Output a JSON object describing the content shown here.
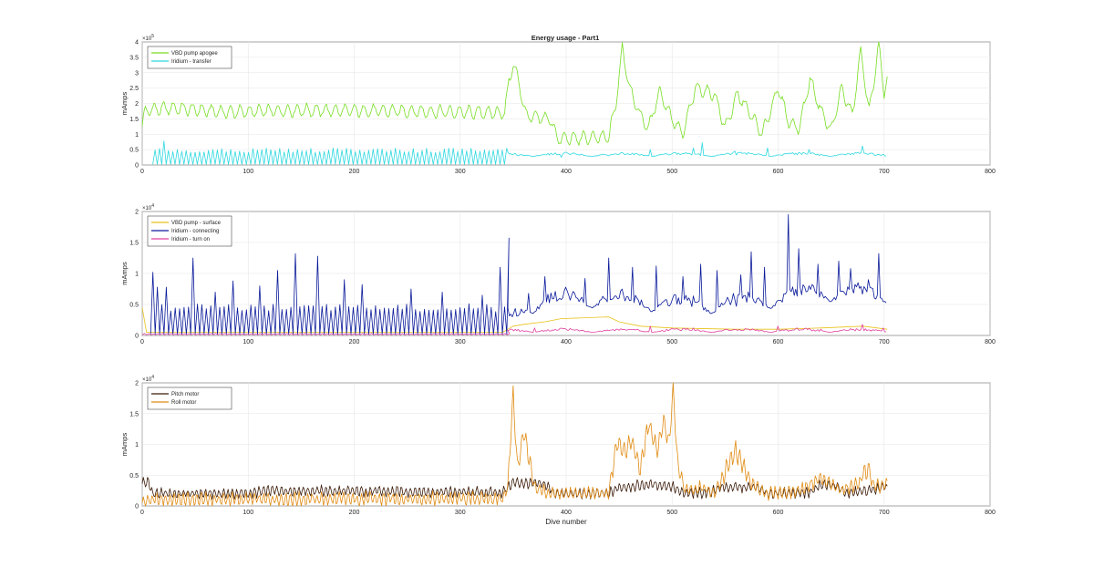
{
  "chart_data": {
    "type": "line",
    "title": "Energy usage - Part1",
    "panels": [
      {
        "id": "apogee",
        "xlim": [
          0,
          800
        ],
        "ylim": [
          0,
          4
        ],
        "y_exponent": "×10^5",
        "exp_base": "×10",
        "exp_power": "5",
        "ylabel": "mAmps",
        "xlabel": "",
        "xticks": [
          "0",
          "100",
          "200",
          "300",
          "400",
          "500",
          "600",
          "700",
          "800"
        ],
        "yticks": [
          "0",
          "0.5",
          "1",
          "1.5",
          "2",
          "2.5",
          "3",
          "3.5",
          "4"
        ],
        "grid": true,
        "legend_position": "top-left",
        "series": [
          {
            "name": "VBD pump apogee",
            "color": "#77dd22",
            "kind": "wave",
            "seg": [
              [
                0,
                1.3
              ],
              [
                3,
                1.75
              ],
              [
                8,
                1.8
              ],
              [
                30,
                1.85
              ],
              [
                80,
                1.72
              ],
              [
                150,
                1.78
              ],
              [
                250,
                1.75
              ],
              [
                330,
                1.7
              ],
              [
                342,
                1.7
              ],
              [
                346,
                2.7
              ],
              [
                350,
                3.3
              ],
              [
                356,
                2.6
              ],
              [
                362,
                1.6
              ],
              [
                370,
                1.55
              ],
              [
                385,
                1.5
              ],
              [
                392,
                0.85
              ],
              [
                440,
                0.9
              ],
              [
                447,
                2.0
              ],
              [
                453,
                3.8
              ],
              [
                460,
                2.5
              ],
              [
                470,
                1.6
              ],
              [
                478,
                1.2
              ],
              [
                488,
                2.4
              ],
              [
                500,
                1.5
              ],
              [
                510,
                1.0
              ],
              [
                522,
                2.5
              ],
              [
                540,
                2.3
              ],
              [
                550,
                1.2
              ],
              [
                562,
                2.3
              ],
              [
                575,
                1.6
              ],
              [
                585,
                1.0
              ],
              [
                600,
                2.5
              ],
              [
                610,
                1.4
              ],
              [
                620,
                1.2
              ],
              [
                630,
                2.8
              ],
              [
                640,
                1.8
              ],
              [
                650,
                1.1
              ],
              [
                660,
                2.5
              ],
              [
                670,
                1.6
              ],
              [
                678,
                3.7
              ],
              [
                686,
                1.7
              ],
              [
                695,
                3.9
              ],
              [
                700,
                2.3
              ],
              [
                703,
                2.8
              ]
            ],
            "amp": 0.12,
            "period": 9
          },
          {
            "name": "Iridium - transfer",
            "color": "#2ed8e0",
            "kind": "spikes",
            "x0": 10,
            "x1": 345,
            "step": 4.2,
            "base": 0.02,
            "peak": 0.48,
            "extras": [
              [
                19,
                0.78
              ],
              [
                395,
                0.25
              ],
              [
                440,
                0.3
              ],
              [
                480,
                0.5
              ],
              [
                520,
                0.55
              ],
              [
                528,
                0.72
              ],
              [
                560,
                0.45
              ],
              [
                590,
                0.55
              ],
              [
                630,
                0.5
              ],
              [
                680,
                0.62
              ],
              [
                700,
                0.35
              ]
            ],
            "tail_x0": 345,
            "tail_x1": 703,
            "tail_base": 0.28,
            "tail_amp": 0.12
          }
        ]
      },
      {
        "id": "surface",
        "xlim": [
          0,
          800
        ],
        "ylim": [
          0,
          2
        ],
        "y_exponent": "×10^4",
        "exp_base": "×10",
        "exp_power": "4",
        "ylabel": "mAmps",
        "xlabel": "",
        "xticks": [
          "0",
          "100",
          "200",
          "300",
          "400",
          "500",
          "600",
          "700",
          "800"
        ],
        "yticks": [
          "0",
          "0.5",
          "1",
          "1.5",
          "2"
        ],
        "grid": true,
        "legend_position": "top-left",
        "series": [
          {
            "name": "VBD pump - surface",
            "color": "#e8c21a",
            "kind": "line",
            "pts": [
              [
                0,
                0.45
              ],
              [
                4,
                0.05
              ],
              [
                340,
                0.05
              ],
              [
                345,
                0.1
              ],
              [
                350,
                0.15
              ],
              [
                360,
                0.18
              ],
              [
                380,
                0.22
              ],
              [
                395,
                0.27
              ],
              [
                440,
                0.3
              ],
              [
                450,
                0.22
              ],
              [
                470,
                0.15
              ],
              [
                500,
                0.12
              ],
              [
                560,
                0.1
              ],
              [
                600,
                0.1
              ],
              [
                640,
                0.12
              ],
              [
                680,
                0.15
              ],
              [
                703,
                0.1
              ]
            ]
          },
          {
            "name": "Iridium - connecting",
            "color": "#0a1a9a",
            "kind": "spikes",
            "x0": 8,
            "x1": 345,
            "step": 4.2,
            "base": 0.02,
            "peak": 0.45,
            "extras": [
              [
                8,
                1.02
              ],
              [
                15,
                0.78
              ],
              [
                25,
                0.78
              ],
              [
                50,
                1.25
              ],
              [
                70,
                0.7
              ],
              [
                87,
                0.88
              ],
              [
                110,
                0.8
              ],
              [
                130,
                1.05
              ],
              [
                146,
                1.32
              ],
              [
                165,
                1.28
              ],
              [
                190,
                0.9
              ],
              [
                210,
                0.82
              ],
              [
                255,
                0.75
              ],
              [
                285,
                0.7
              ],
              [
                322,
                0.65
              ],
              [
                340,
                1.1
              ],
              [
                348,
                1.57
              ],
              [
                365,
                0.68
              ],
              [
                380,
                0.95
              ],
              [
                400,
                0.78
              ],
              [
                418,
                0.92
              ],
              [
                440,
                1.25
              ],
              [
                463,
                1.1
              ],
              [
                485,
                1.12
              ],
              [
                510,
                0.95
              ],
              [
                527,
                1.15
              ],
              [
                543,
                1.05
              ],
              [
                565,
                0.98
              ],
              [
                575,
                1.35
              ],
              [
                588,
                1.1
              ],
              [
                610,
                1.95
              ],
              [
                620,
                1.4
              ],
              [
                638,
                1.15
              ],
              [
                658,
                1.2
              ],
              [
                668,
                1.08
              ],
              [
                685,
                0.9
              ],
              [
                695,
                1.32
              ]
            ],
            "tail_x0": 345,
            "tail_x1": 703,
            "tail_base": 0.25,
            "tail_amp": 0.3,
            "trend": [
              [
                345,
                0.1
              ],
              [
                360,
                0.3
              ],
              [
                380,
                0.42
              ],
              [
                440,
                0.45
              ],
              [
                500,
                0.35
              ],
              [
                560,
                0.35
              ],
              [
                600,
                0.45
              ],
              [
                640,
                0.55
              ],
              [
                703,
                0.5
              ]
            ]
          },
          {
            "name": "Iridium - turn on",
            "color": "#e040a0",
            "kind": "spikes",
            "x0": 0,
            "x1": 345,
            "step": 4.2,
            "base": 0.01,
            "peak": 0.03,
            "extras": [
              [
                370,
                0.12
              ],
              [
                380,
                0.08
              ],
              [
                480,
                0.15
              ],
              [
                520,
                0.12
              ],
              [
                600,
                0.15
              ],
              [
                640,
                0.1
              ],
              [
                680,
                0.18
              ],
              [
                700,
                0.12
              ]
            ],
            "tail_x0": 345,
            "tail_x1": 703,
            "tail_base": 0.05,
            "tail_amp": 0.06
          }
        ]
      },
      {
        "id": "motors",
        "xlim": [
          0,
          800
        ],
        "ylim": [
          0,
          2
        ],
        "y_exponent": "×10^4",
        "exp_base": "×10",
        "exp_power": "4",
        "ylabel": "mAmps",
        "xlabel": "Dive number",
        "xticks": [
          "0",
          "100",
          "200",
          "300",
          "400",
          "500",
          "600",
          "700",
          "800"
        ],
        "yticks": [
          "0",
          "0.5",
          "1",
          "1.5",
          "2"
        ],
        "grid": true,
        "legend_position": "top-left",
        "series": [
          {
            "name": "Pitch motor",
            "color": "#3a1a08",
            "kind": "wave",
            "seg": [
              [
                0,
                0.38
              ],
              [
                6,
                0.38
              ],
              [
                10,
                0.2
              ],
              [
                100,
                0.2
              ],
              [
                120,
                0.25
              ],
              [
                340,
                0.22
              ],
              [
                350,
                0.38
              ],
              [
                380,
                0.35
              ],
              [
                390,
                0.2
              ],
              [
                440,
                0.2
              ],
              [
                450,
                0.3
              ],
              [
                480,
                0.35
              ],
              [
                500,
                0.32
              ],
              [
                510,
                0.2
              ],
              [
                535,
                0.22
              ],
              [
                545,
                0.3
              ],
              [
                580,
                0.3
              ],
              [
                590,
                0.2
              ],
              [
                630,
                0.22
              ],
              [
                640,
                0.35
              ],
              [
                655,
                0.32
              ],
              [
                665,
                0.2
              ],
              [
                703,
                0.3
              ]
            ],
            "amp": 0.07,
            "period": 4.2
          },
          {
            "name": "Roll motor",
            "color": "#e08a10",
            "kind": "wave",
            "seg": [
              [
                0,
                0.05
              ],
              [
                8,
                0.1
              ],
              [
                340,
                0.12
              ],
              [
                345,
                0.3
              ],
              [
                350,
                1.85
              ],
              [
                354,
                0.6
              ],
              [
                360,
                1.2
              ],
              [
                370,
                0.3
              ],
              [
                385,
                0.2
              ],
              [
                440,
                0.2
              ],
              [
                448,
                1.05
              ],
              [
                455,
                0.9
              ],
              [
                462,
                1.05
              ],
              [
                470,
                0.6
              ],
              [
                478,
                1.35
              ],
              [
                486,
                0.9
              ],
              [
                492,
                1.4
              ],
              [
                497,
                1.0
              ],
              [
                501,
                1.9
              ],
              [
                505,
                0.7
              ],
              [
                512,
                0.25
              ],
              [
                530,
                0.3
              ],
              [
                540,
                0.2
              ],
              [
                560,
                0.9
              ],
              [
                575,
                0.35
              ],
              [
                590,
                0.2
              ],
              [
                620,
                0.25
              ],
              [
                640,
                0.45
              ],
              [
                660,
                0.25
              ],
              [
                675,
                0.35
              ],
              [
                685,
                0.62
              ],
              [
                690,
                0.3
              ],
              [
                703,
                0.35
              ]
            ],
            "amp": 0.09,
            "period": 4.2
          }
        ]
      }
    ]
  }
}
